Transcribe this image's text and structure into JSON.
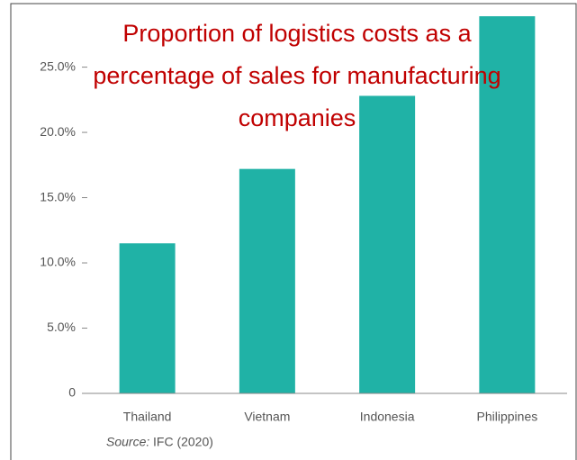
{
  "chart_data": {
    "type": "bar",
    "title": "Proportion of logistics costs as a percentage of sales for manufacturing companies",
    "categories": [
      "Thailand",
      "Vietnam",
      "Indonesia",
      "Philippines"
    ],
    "values": [
      11.5,
      17.2,
      22.8,
      28.9
    ],
    "color": "#20b2a6",
    "ylim": [
      0,
      29.8
    ],
    "yticks": [
      0,
      {
        "value": 5,
        "label": "5.0%"
      },
      {
        "value": 10,
        "label": "10.0%"
      },
      {
        "value": 15,
        "label": "15.0%"
      },
      {
        "value": 20,
        "label": "20.0%"
      },
      {
        "value": 25,
        "label": "25.0%"
      }
    ],
    "source_label": "Source:",
    "source": "IFC (2020)"
  }
}
